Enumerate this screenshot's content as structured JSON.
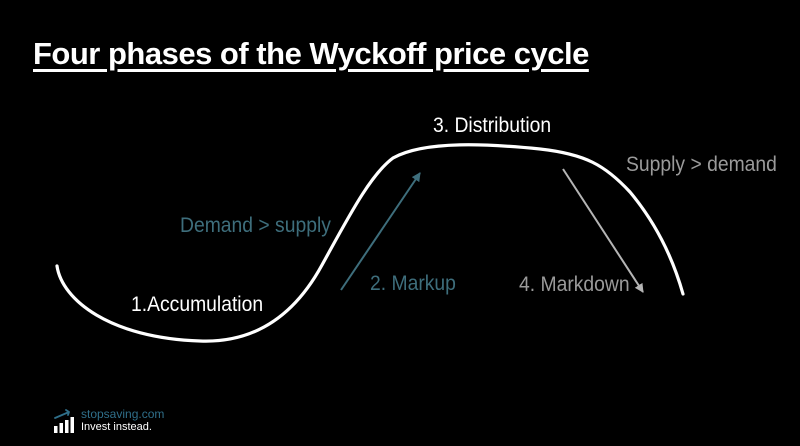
{
  "title": "Four phases of the Wyckoff price cycle",
  "phases": {
    "accumulation": "1.Accumulation",
    "markup": "2. Markup",
    "distribution": "3. Distribution",
    "markdown": "4. Markdown"
  },
  "conditions": {
    "demand_gt_supply": "Demand > supply",
    "supply_gt_demand": "Supply > demand"
  },
  "colors": {
    "background": "#000000",
    "curve": "#ffffff",
    "markup": "#3e6e7c",
    "markdown": "#9a9a9a"
  },
  "logo": {
    "brand": "stopsaving.com",
    "tagline": "Invest instead.",
    "icon": "bar-chart-logo-icon"
  }
}
